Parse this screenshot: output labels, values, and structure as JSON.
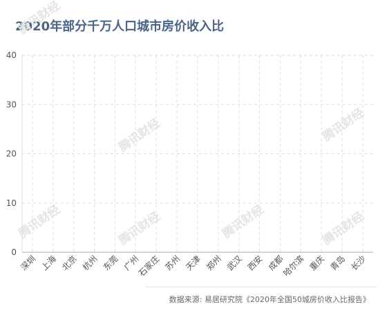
{
  "chart_data": {
    "type": "bar",
    "title": "2020年部分千万人口城市房价收入比",
    "source": "数据来源: 易居研究院《2020年全国50城房价收入比报告》",
    "watermark": "腾讯财经",
    "categories": [
      "深圳",
      "上海",
      "北京",
      "杭州",
      "东莞",
      "广州",
      "石家庄",
      "苏州",
      "天津",
      "郑州",
      "武汉",
      "西安",
      "成都",
      "哈尔滨",
      "重庆",
      "青岛",
      "长沙"
    ],
    "ylim": [
      0,
      40
    ],
    "yticks": [
      0,
      10,
      20,
      30,
      40
    ],
    "grid": true,
    "color": "#4a6a8a"
  }
}
